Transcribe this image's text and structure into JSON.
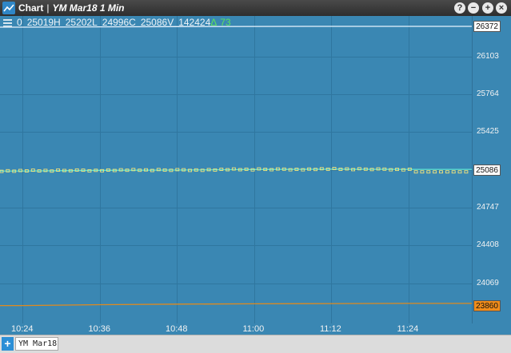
{
  "window": {
    "title": "Chart",
    "subtitle": "YM Mar18 1 Min",
    "buttons": [
      "?",
      "−",
      "+",
      "×"
    ]
  },
  "ohlc": {
    "open": "0",
    "high": "25019H",
    "low": "25202L",
    "close": "24996C",
    "volume": "25086V",
    "count": "142424",
    "delta_symbol": "Δ",
    "delta_value": "73"
  },
  "y_axis": {
    "ticks": [
      "26103",
      "25764",
      "25425",
      "25086",
      "24747",
      "24408",
      "24069"
    ],
    "top_marker": "26372",
    "last_price": "25086",
    "bottom_marker": "23860"
  },
  "x_axis": {
    "ticks": [
      "10:24",
      "10:36",
      "10:48",
      "11:00",
      "11:12",
      "11:24"
    ]
  },
  "colors": {
    "background": "#3a87b3",
    "price_line": "#5fe6d3",
    "upper_band": "#e8f4ff",
    "lower_band": "#e08a1e",
    "bar_markers": "#f2e27a"
  },
  "chart_data": {
    "type": "line",
    "ylim": [
      23860,
      26372
    ],
    "x": [
      "10:24",
      "10:36",
      "10:48",
      "11:00",
      "11:12",
      "11:24"
    ],
    "series": [
      {
        "values": [
          25076,
          25082,
          25084,
          25089,
          25092,
          25090
        ]
      },
      {
        "values": [
          26365,
          26368,
          26370,
          26371,
          26372,
          26372
        ]
      },
      {
        "values": [
          23870,
          23878,
          23883,
          23886,
          23888,
          23889
        ]
      }
    ]
  },
  "tabs": [
    {
      "label": "YM Mar18"
    }
  ],
  "add_tab_label": "+"
}
